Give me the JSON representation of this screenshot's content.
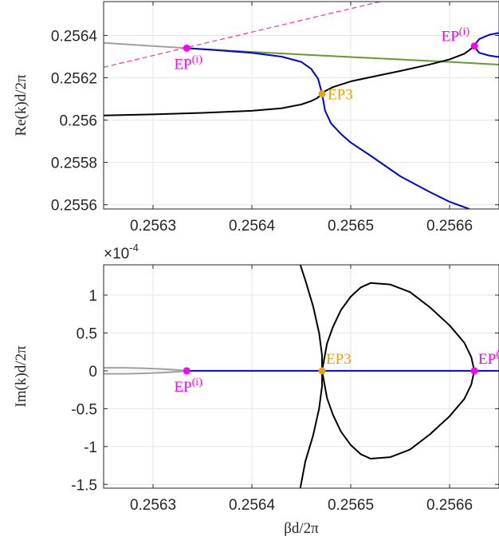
{
  "colors": {
    "grey": "#a0a0a0",
    "black": "#000000",
    "blue": "#0000e6",
    "green": "#6a9a2a",
    "magenta_dash": "#ff2ea8",
    "ep_magenta": "#ff00ff",
    "ep3_orange": "#e8a400",
    "grid": "#e6e6e6",
    "axis": "#262626"
  },
  "chart_data": [
    {
      "type": "line",
      "ylabel": "Re(k)d/2π",
      "xlim": [
        0.25625,
        0.25665
      ],
      "ylim": [
        0.25558,
        0.25656
      ],
      "xticks": [
        "0.2563",
        "0.2564",
        "0.2565",
        "0.2566"
      ],
      "xtick_values": [
        0.2563,
        0.2564,
        0.2565,
        0.2566
      ],
      "yticks": [
        "0.2564",
        "0.2562",
        "0.256",
        "0.2558",
        "0.2556"
      ],
      "ytick_values": [
        0.2564,
        0.2562,
        0.256,
        0.2558,
        0.2556
      ],
      "grid": true,
      "series": [
        {
          "color": "grey",
          "dash": false,
          "points": [
            [
              0.25625,
              0.256365
            ],
            [
              0.25626,
              0.256362
            ],
            [
              0.25628,
              0.256356
            ],
            [
              0.2563,
              0.25635
            ],
            [
              0.25632,
              0.256344
            ],
            [
              0.256334,
              0.25634
            ]
          ]
        },
        {
          "color": "magenta_dash",
          "dash": true,
          "points": [
            [
              0.25625,
              0.25625
            ],
            [
              0.25653,
              0.25656
            ]
          ]
        },
        {
          "color": "green",
          "dash": false,
          "points": [
            [
              0.256334,
              0.25634
            ],
            [
              0.2564,
              0.256322
            ],
            [
              0.2565,
              0.256298
            ],
            [
              0.2566,
              0.256275
            ],
            [
              0.25665,
              0.256262
            ]
          ]
        },
        {
          "color": "black",
          "dash": false,
          "points": [
            [
              0.25625,
              0.256022
            ],
            [
              0.2563,
              0.256027
            ],
            [
              0.25635,
              0.256034
            ],
            [
              0.2564,
              0.256044
            ],
            [
              0.25643,
              0.256056
            ],
            [
              0.25645,
              0.256074
            ],
            [
              0.25646,
              0.25609
            ],
            [
              0.256466,
              0.256104
            ],
            [
              0.256469,
              0.256116
            ],
            [
              0.256471,
              0.256124
            ]
          ]
        },
        {
          "color": "black",
          "dash": false,
          "points": [
            [
              0.256471,
              0.256124
            ],
            [
              0.256474,
              0.256137
            ],
            [
              0.256482,
              0.256156
            ],
            [
              0.2565,
              0.256183
            ],
            [
              0.25652,
              0.256203
            ],
            [
              0.25655,
              0.256232
            ],
            [
              0.25658,
              0.256263
            ],
            [
              0.2566,
              0.256287
            ],
            [
              0.256615,
              0.256314
            ],
            [
              0.256622,
              0.256338
            ],
            [
              0.256625,
              0.25635
            ]
          ]
        },
        {
          "color": "blue",
          "dash": false,
          "points": [
            [
              0.256334,
              0.25634
            ],
            [
              0.25636,
              0.256332
            ],
            [
              0.2564,
              0.256318
            ],
            [
              0.25643,
              0.2563
            ],
            [
              0.25645,
              0.256275
            ],
            [
              0.25646,
              0.256242
            ],
            [
              0.256467,
              0.256195
            ],
            [
              0.256471,
              0.256124
            ]
          ]
        },
        {
          "color": "blue",
          "dash": false,
          "points": [
            [
              0.256471,
              0.256124
            ],
            [
              0.256474,
              0.256045
            ],
            [
              0.25648,
              0.255985
            ],
            [
              0.25649,
              0.255935
            ],
            [
              0.2565,
              0.255894
            ],
            [
              0.25652,
              0.255832
            ],
            [
              0.25655,
              0.255735
            ],
            [
              0.25658,
              0.25566
            ],
            [
              0.2566,
              0.255614
            ],
            [
              0.25662,
              0.25558
            ]
          ]
        },
        {
          "color": "blue",
          "dash": false,
          "points": [
            [
              0.256625,
              0.25635
            ],
            [
              0.256627,
              0.256365
            ],
            [
              0.25663,
              0.256383
            ],
            [
              0.25664,
              0.256403
            ],
            [
              0.25665,
              0.256412
            ]
          ]
        },
        {
          "color": "blue",
          "dash": false,
          "points": [
            [
              0.256625,
              0.25635
            ],
            [
              0.256627,
              0.256335
            ],
            [
              0.25663,
              0.256318
            ],
            [
              0.25664,
              0.256305
            ],
            [
              0.25665,
              0.256298
            ]
          ]
        }
      ],
      "markers": [
        {
          "label_base": "EP",
          "label_sup": "(i)",
          "x": 0.256334,
          "y": 0.25634,
          "color": "ep_magenta",
          "label_pos": "below"
        },
        {
          "label_base": "EP",
          "label_sup": "(i)",
          "x": 0.256625,
          "y": 0.25635,
          "color": "ep_magenta",
          "label_pos": "above-left"
        },
        {
          "label_base": "EP3",
          "label_sup": "",
          "x": 0.256471,
          "y": 0.256124,
          "color": "ep3_orange",
          "label_pos": "right"
        }
      ]
    },
    {
      "type": "line",
      "ylabel": "Im(k)d/2π",
      "xlabel": "βd/2π",
      "exponent_label": "×10",
      "exponent_power": "-4",
      "xlim": [
        0.25625,
        0.25665
      ],
      "ylim": [
        -1.55,
        1.4
      ],
      "xticks": [
        "0.2563",
        "0.2564",
        "0.2565",
        "0.2566"
      ],
      "xtick_values": [
        0.2563,
        0.2564,
        0.2565,
        0.2566
      ],
      "yticks": [
        "1",
        "0.5",
        "0",
        "-0.5",
        "-1",
        "-1.5"
      ],
      "ytick_values": [
        1,
        0.5,
        0,
        -0.5,
        -1,
        -1.5
      ],
      "grid": true,
      "series": [
        {
          "color": "grey",
          "dash": false,
          "points": [
            [
              0.25625,
              0.04
            ],
            [
              0.25627,
              0.039
            ],
            [
              0.25629,
              0.034
            ],
            [
              0.25631,
              0.024
            ],
            [
              0.256325,
              0.012
            ],
            [
              0.256334,
              0.0
            ]
          ]
        },
        {
          "color": "grey",
          "dash": false,
          "points": [
            [
              0.25625,
              -0.04
            ],
            [
              0.25627,
              -0.039
            ],
            [
              0.25629,
              -0.034
            ],
            [
              0.25631,
              -0.024
            ],
            [
              0.256325,
              -0.012
            ],
            [
              0.256334,
              0.0
            ]
          ]
        },
        {
          "color": "blue",
          "dash": false,
          "points": [
            [
              0.256334,
              0.0
            ],
            [
              0.25665,
              0.0
            ]
          ]
        },
        {
          "color": "black",
          "dash": false,
          "points": [
            [
              0.256449,
              1.4
            ],
            [
              0.256454,
              1.2
            ],
            [
              0.256462,
              0.85
            ],
            [
              0.256468,
              0.5
            ],
            [
              0.256471,
              0.2
            ],
            [
              0.256471,
              0.0
            ],
            [
              0.256471,
              -0.2
            ],
            [
              0.256468,
              -0.5
            ],
            [
              0.256462,
              -0.85
            ],
            [
              0.256454,
              -1.2
            ],
            [
              0.256449,
              -1.55
            ]
          ]
        },
        {
          "color": "black",
          "dash": false,
          "points": [
            [
              0.256471,
              0.0
            ],
            [
              0.256476,
              0.36
            ],
            [
              0.256482,
              0.58
            ],
            [
              0.25649,
              0.8
            ],
            [
              0.2565,
              0.98
            ],
            [
              0.25651,
              1.1
            ],
            [
              0.25652,
              1.16
            ],
            [
              0.25654,
              1.14
            ],
            [
              0.25656,
              1.04
            ],
            [
              0.25658,
              0.84
            ],
            [
              0.2566,
              0.6
            ],
            [
              0.256615,
              0.37
            ],
            [
              0.256622,
              0.18
            ],
            [
              0.256625,
              0.0
            ]
          ]
        },
        {
          "color": "black",
          "dash": false,
          "points": [
            [
              0.256471,
              0.0
            ],
            [
              0.256476,
              -0.36
            ],
            [
              0.256482,
              -0.58
            ],
            [
              0.25649,
              -0.8
            ],
            [
              0.2565,
              -0.98
            ],
            [
              0.25651,
              -1.1
            ],
            [
              0.25652,
              -1.16
            ],
            [
              0.25654,
              -1.14
            ],
            [
              0.25656,
              -1.04
            ],
            [
              0.25658,
              -0.84
            ],
            [
              0.2566,
              -0.6
            ],
            [
              0.256615,
              -0.37
            ],
            [
              0.256622,
              -0.18
            ],
            [
              0.256625,
              0.0
            ]
          ]
        }
      ],
      "markers": [
        {
          "label_base": "EP",
          "label_sup": "(i)",
          "x": 0.256334,
          "y": 0.0,
          "color": "ep_magenta",
          "label_pos": "below"
        },
        {
          "label_base": "EP3",
          "label_sup": "",
          "x": 0.256471,
          "y": 0.0,
          "color": "ep3_orange",
          "label_pos": "above-right"
        },
        {
          "label_base": "EP",
          "label_sup": "(i)",
          "x": 0.256625,
          "y": 0.0,
          "color": "ep_magenta",
          "label_pos": "above-right"
        }
      ]
    }
  ]
}
